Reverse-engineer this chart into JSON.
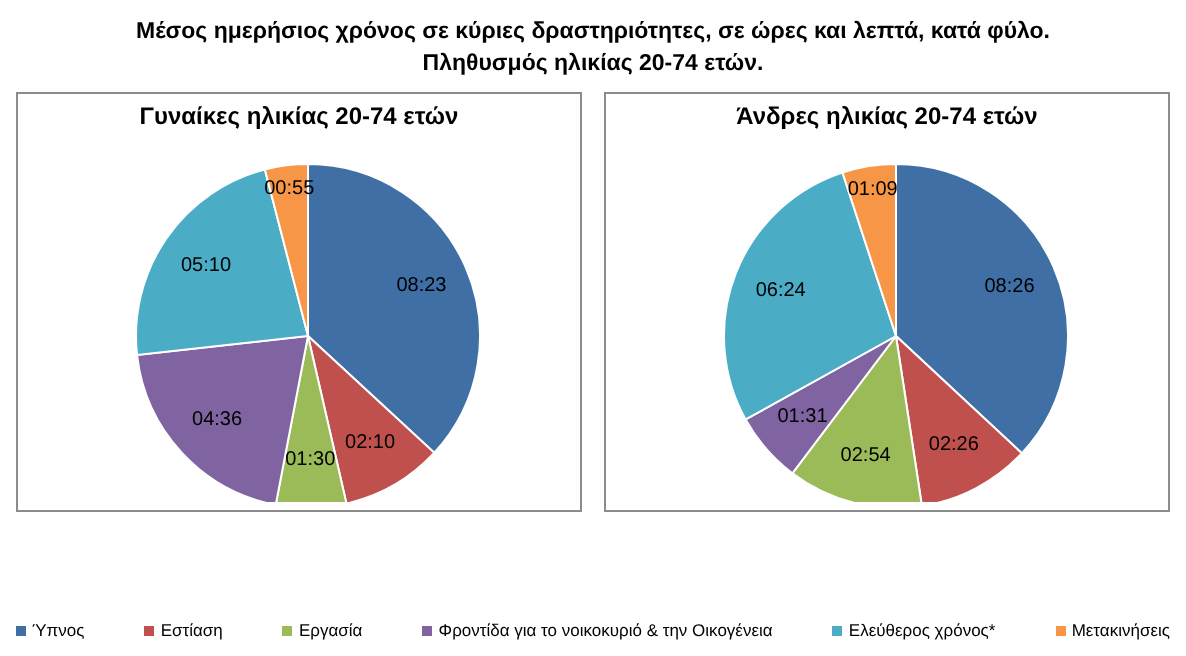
{
  "chart_data": [
    {
      "type": "pie",
      "title": "Γυναίκες ηλικίας 20-74 ετών",
      "annotations": [
        "Μέσος ημερήσιος χρόνος σε κύριες δραστηριότητες, σε ώρες και λεπτά,  κατά φύλο.",
        "Πληθυσμός ηλικίας 20-74 ετών."
      ],
      "legend": "bottom",
      "categories": [
        "Ύπνος",
        "Εστίαση",
        "Εργασία",
        "Φροντίδα για το νοικοκυριό & την Οικογένεια",
        "Ελεύθερος χρόνος*",
        "Μετακινήσεις"
      ],
      "values": [
        503,
        130,
        90,
        276,
        310,
        55
      ],
      "value_labels": [
        "08:23",
        "02:10",
        "01:30",
        "04:36",
        "05:10",
        "00:55"
      ],
      "colors": [
        "#3f6fa5",
        "#c0504d",
        "#9bbb59",
        "#8064a2",
        "#4bacc6",
        "#f79646"
      ]
    },
    {
      "type": "pie",
      "title": "Άνδρες ηλικίας 20-74 ετών",
      "categories": [
        null,
        null,
        null,
        null,
        null,
        null
      ],
      "values": [
        506,
        146,
        174,
        91,
        384,
        69
      ],
      "value_labels": [
        "08:26",
        "02:26",
        "02:54",
        "01:31",
        "06:24",
        "01:09"
      ],
      "colors": [
        "#3f6fa5",
        "#c0504d",
        "#9bbb59",
        "#8064a2",
        "#4bacc6",
        "#f79646"
      ]
    }
  ]
}
